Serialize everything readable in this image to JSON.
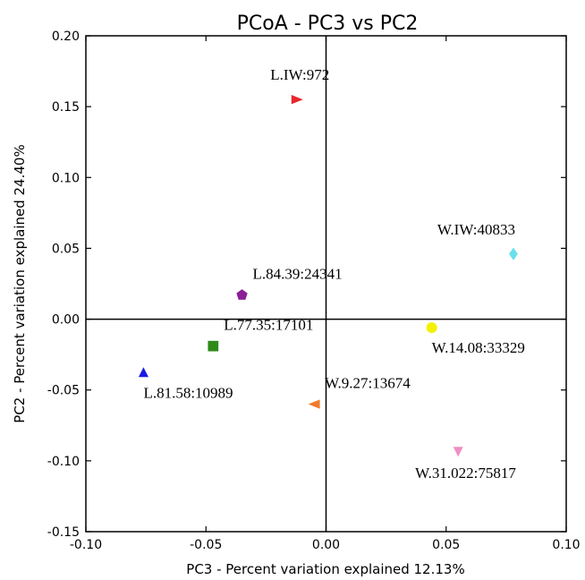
{
  "chart_data": {
    "type": "scatter",
    "title": "PCoA - PC3 vs PC2",
    "xlabel": "PC3 - Percent variation explained 12.13%",
    "ylabel": "PC2 - Percent variation explained 24.40%",
    "xlim": [
      -0.1,
      0.1
    ],
    "ylim": [
      -0.15,
      0.2
    ],
    "xticks": [
      "-0.10",
      "-0.05",
      "0.00",
      "0.05",
      "0.10"
    ],
    "xtick_values": [
      -0.1,
      -0.05,
      0.0,
      0.05,
      0.1
    ],
    "yticks": [
      "0.20",
      "0.15",
      "0.10",
      "0.05",
      "0.00",
      "-0.05",
      "-0.10",
      "-0.15"
    ],
    "ytick_values": [
      0.2,
      0.15,
      0.1,
      0.05,
      0.0,
      -0.05,
      -0.1,
      -0.15
    ],
    "grid": false,
    "zero_lines": true,
    "points": [
      {
        "label": "L.IW:972",
        "x": -0.012,
        "y": 0.155,
        "color": "#e8272b",
        "marker": "triangle-right",
        "label_pos": "above"
      },
      {
        "label": "W.IW:40833",
        "x": 0.078,
        "y": 0.046,
        "color": "#66e0ea",
        "marker": "diamond",
        "label_pos": "above-left"
      },
      {
        "label": "L.84.39:24341",
        "x": -0.035,
        "y": 0.017,
        "color": "#8b1f98",
        "marker": "pentagon",
        "label_pos": "above-right"
      },
      {
        "label": "L.77.35:17101",
        "x": -0.047,
        "y": -0.019,
        "color": "#2f8a1a",
        "marker": "square",
        "label_pos": "above-right"
      },
      {
        "label": "W.14.08:33329",
        "x": 0.044,
        "y": -0.006,
        "color": "#f2f200",
        "marker": "circle",
        "label_pos": "below-right"
      },
      {
        "label": "L.81.58:10989",
        "x": -0.076,
        "y": -0.038,
        "color": "#1a1ae6",
        "marker": "triangle-up",
        "label_pos": "below-right"
      },
      {
        "label": "W.9.27:13674",
        "x": -0.005,
        "y": -0.06,
        "color": "#f07a2d",
        "marker": "triangle-left",
        "label_pos": "above-right"
      },
      {
        "label": "W.31.022:75817",
        "x": 0.055,
        "y": -0.093,
        "color": "#f08fc4",
        "marker": "triangle-down",
        "label_pos": "below-left"
      }
    ]
  }
}
